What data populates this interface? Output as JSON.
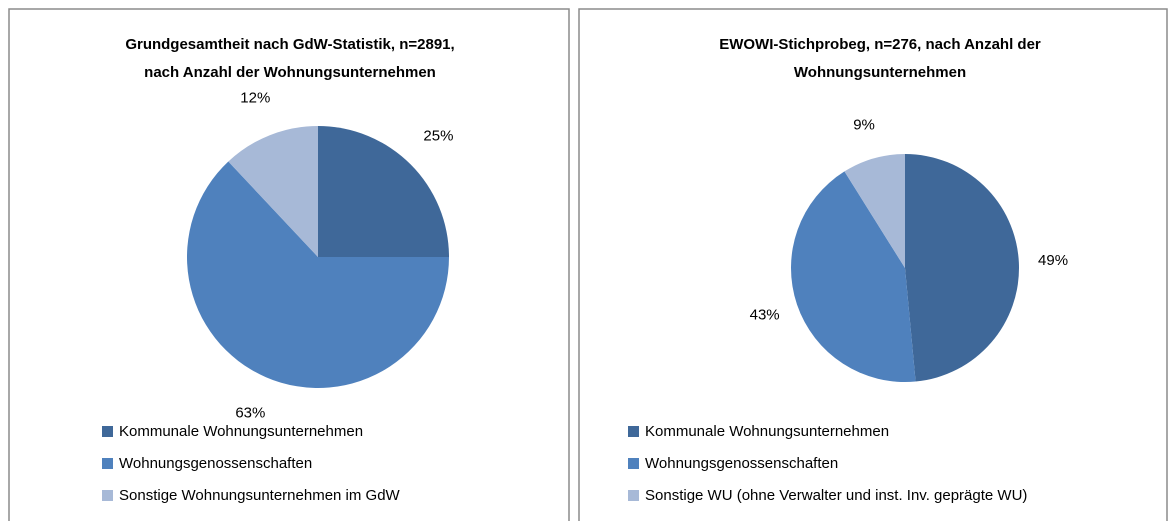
{
  "chart_data": [
    {
      "type": "pie",
      "title": [
        "Grundgesamtheit nach GdW-Statistik, n=2891,",
        "nach Anzahl der Wohnungsunternehmen"
      ],
      "categories": [
        "Kommunale Wohnungsunternehmen",
        "Wohnungsgenossenschaften",
        "Sonstige Wohnungsunternehmen im GdW"
      ],
      "values": [
        25,
        63,
        12
      ],
      "value_labels": [
        "25%",
        "63%",
        "12%"
      ],
      "colors": [
        "#3f6899",
        "#4f81bd",
        "#a7b9d7"
      ]
    },
    {
      "type": "pie",
      "title": [
        "EWOWI-Stichprobeg, n=276, nach Anzahl der",
        "Wohnungsunternehmen"
      ],
      "categories": [
        "Kommunale Wohnungsunternehmen",
        "Wohnungsgenossenschaften",
        "Sonstige WU (ohne Verwalter und inst. Inv. geprägte WU)"
      ],
      "values": [
        49,
        43,
        9
      ],
      "value_labels": [
        "49%",
        "43%",
        "9%"
      ],
      "colors": [
        "#3f6899",
        "#4f81bd",
        "#a7b9d7"
      ]
    }
  ]
}
